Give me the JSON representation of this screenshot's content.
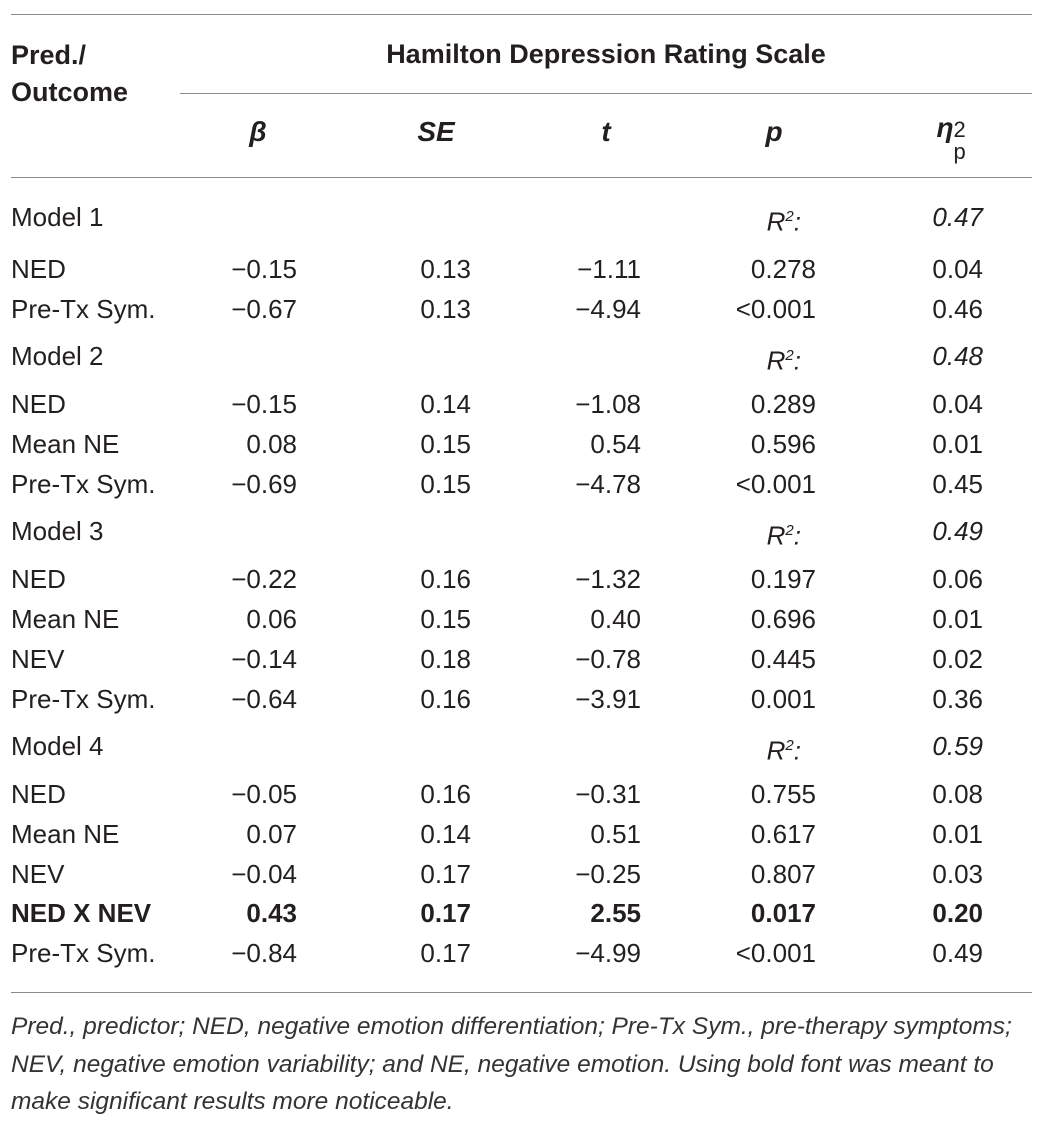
{
  "header": {
    "predictor_label": "Pred./\nOutcome",
    "scale_title": "Hamilton Depression Rating Scale",
    "columns": [
      "β",
      "SE",
      "t",
      "p",
      "η"
    ],
    "eta_subscript": "p",
    "eta_superscript": "2"
  },
  "models": [
    {
      "label": "Model 1",
      "r2_label": "R",
      "r2_sup": "2",
      "r2_colon": ":",
      "r2_value": "0.47",
      "rows": [
        {
          "name": "NED",
          "beta": "−0.15",
          "se": "0.13",
          "t": "−1.11",
          "p": "0.278",
          "eta": "0.04",
          "bold": false
        },
        {
          "name": "Pre-Tx Sym.",
          "beta": "−0.67",
          "se": "0.13",
          "t": "−4.94",
          "p": "<0.001",
          "eta": "0.46",
          "bold": false
        }
      ]
    },
    {
      "label": "Model 2",
      "r2_label": "R",
      "r2_sup": "2",
      "r2_colon": ":",
      "r2_value": "0.48",
      "rows": [
        {
          "name": "NED",
          "beta": "−0.15",
          "se": "0.14",
          "t": "−1.08",
          "p": "0.289",
          "eta": "0.04",
          "bold": false
        },
        {
          "name": "Mean NE",
          "beta": "0.08",
          "se": "0.15",
          "t": "0.54",
          "p": "0.596",
          "eta": "0.01",
          "bold": false
        },
        {
          "name": "Pre-Tx Sym.",
          "beta": "−0.69",
          "se": "0.15",
          "t": "−4.78",
          "p": "<0.001",
          "eta": "0.45",
          "bold": false
        }
      ]
    },
    {
      "label": "Model 3",
      "r2_label": "R",
      "r2_sup": "2",
      "r2_colon": ":",
      "r2_value": "0.49",
      "rows": [
        {
          "name": "NED",
          "beta": "−0.22",
          "se": "0.16",
          "t": "−1.32",
          "p": "0.197",
          "eta": "0.06",
          "bold": false
        },
        {
          "name": "Mean NE",
          "beta": "0.06",
          "se": "0.15",
          "t": "0.40",
          "p": "0.696",
          "eta": "0.01",
          "bold": false
        },
        {
          "name": "NEV",
          "beta": "−0.14",
          "se": "0.18",
          "t": "−0.78",
          "p": "0.445",
          "eta": "0.02",
          "bold": false
        },
        {
          "name": "Pre-Tx Sym.",
          "beta": "−0.64",
          "se": "0.16",
          "t": "−3.91",
          "p": "0.001",
          "eta": "0.36",
          "bold": false
        }
      ]
    },
    {
      "label": "Model 4",
      "r2_label": "R",
      "r2_sup": "2",
      "r2_colon": ":",
      "r2_value": "0.59",
      "rows": [
        {
          "name": "NED",
          "beta": "−0.05",
          "se": "0.16",
          "t": "−0.31",
          "p": "0.755",
          "eta": "0.08",
          "bold": false
        },
        {
          "name": "Mean NE",
          "beta": "0.07",
          "se": "0.14",
          "t": "0.51",
          "p": "0.617",
          "eta": "0.01",
          "bold": false
        },
        {
          "name": "NEV",
          "beta": "−0.04",
          "se": "0.17",
          "t": "−0.25",
          "p": "0.807",
          "eta": "0.03",
          "bold": false
        },
        {
          "name": "NED X NEV",
          "beta": "0.43",
          "se": "0.17",
          "t": "2.55",
          "p": "0.017",
          "eta": "0.20",
          "bold": true
        },
        {
          "name": "Pre-Tx Sym.",
          "beta": "−0.84",
          "se": "0.17",
          "t": "−4.99",
          "p": "<0.001",
          "eta": "0.49",
          "bold": false
        }
      ]
    }
  ],
  "footnote": "Pred., predictor; NED, negative emotion differentiation; Pre-Tx Sym., pre-therapy symptoms; NEV, negative emotion variability; and NE, negative emotion. Using bold font was meant to make significant results more noticeable."
}
